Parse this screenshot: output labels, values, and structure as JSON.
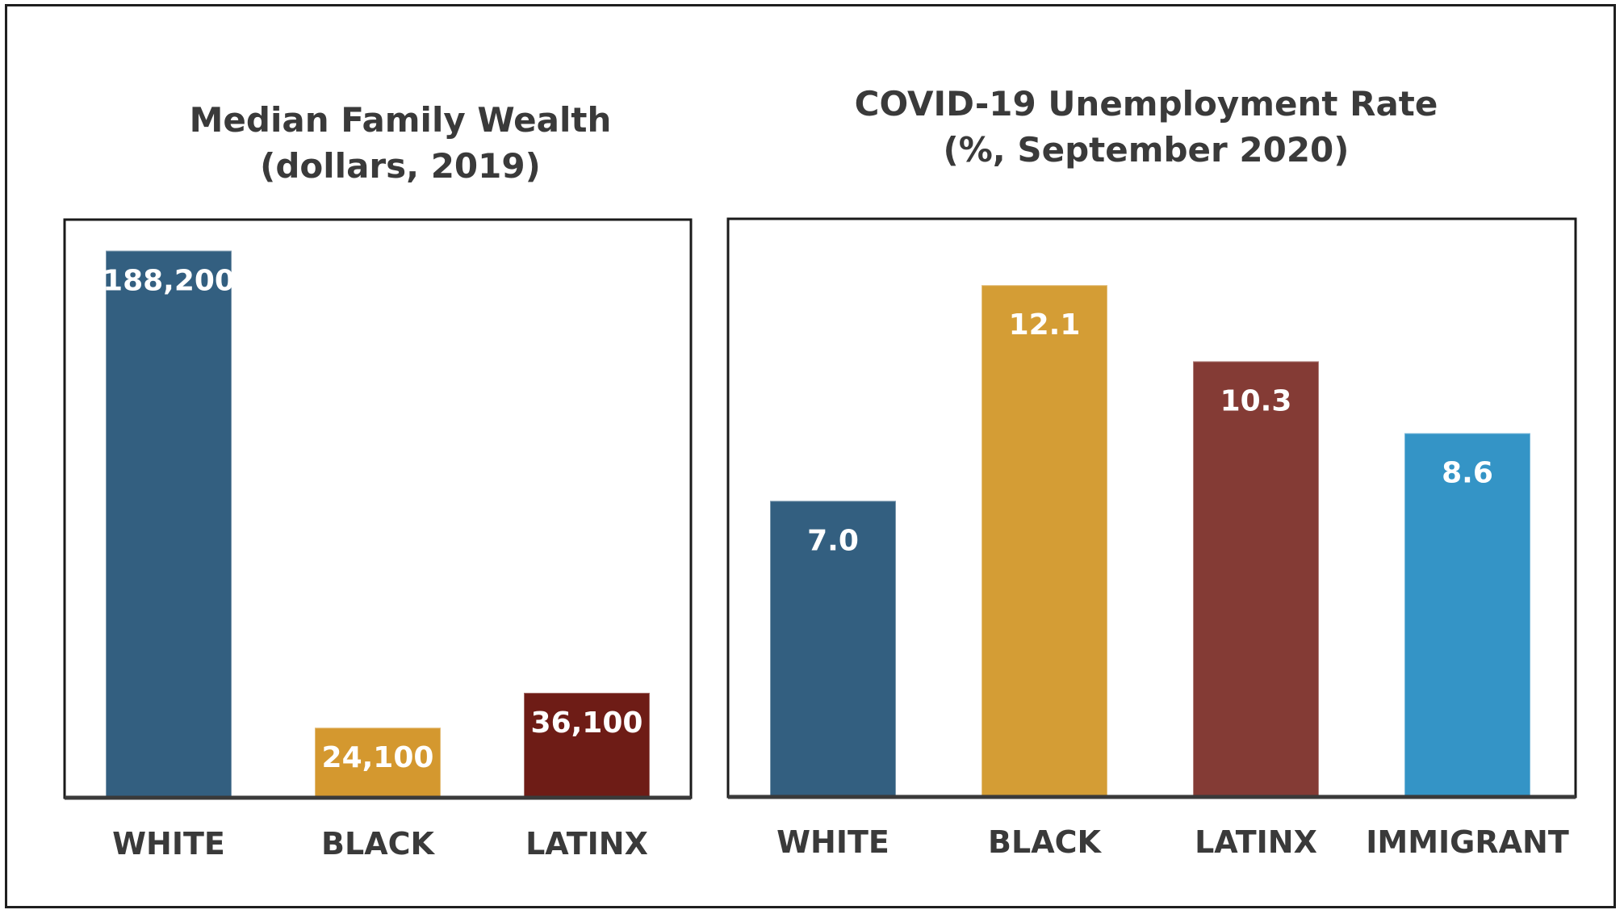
{
  "chart_data": [
    {
      "type": "bar",
      "title": "Median Family Wealth",
      "subtitle": "(dollars, 2019)",
      "categories": [
        "WHITE",
        "BLACK",
        "LATINX"
      ],
      "values": [
        188200,
        24100,
        36100
      ],
      "value_labels": [
        "188,200",
        "24,100",
        "36,100"
      ],
      "colors": [
        "#335f80",
        "#d4982f",
        "#6e1c16"
      ],
      "xlabel": "",
      "ylabel": "",
      "ylim": [
        0,
        200000
      ],
      "grid": false,
      "legend": "none"
    },
    {
      "type": "bar",
      "title": "COVID-19 Unemployment Rate",
      "subtitle": "(%, September 2020)",
      "categories": [
        "WHITE",
        "BLACK",
        "LATINX",
        "IMMIGRANT"
      ],
      "values": [
        7.0,
        12.1,
        10.3,
        8.6
      ],
      "value_labels": [
        "7.0",
        "12.1",
        "10.3",
        "8.6"
      ],
      "colors": [
        "#335f80",
        "#d49d35",
        "#843b35",
        "#3494c6"
      ],
      "xlabel": "",
      "ylabel": "",
      "ylim": [
        0,
        13
      ],
      "grid": false,
      "legend": "none"
    }
  ]
}
